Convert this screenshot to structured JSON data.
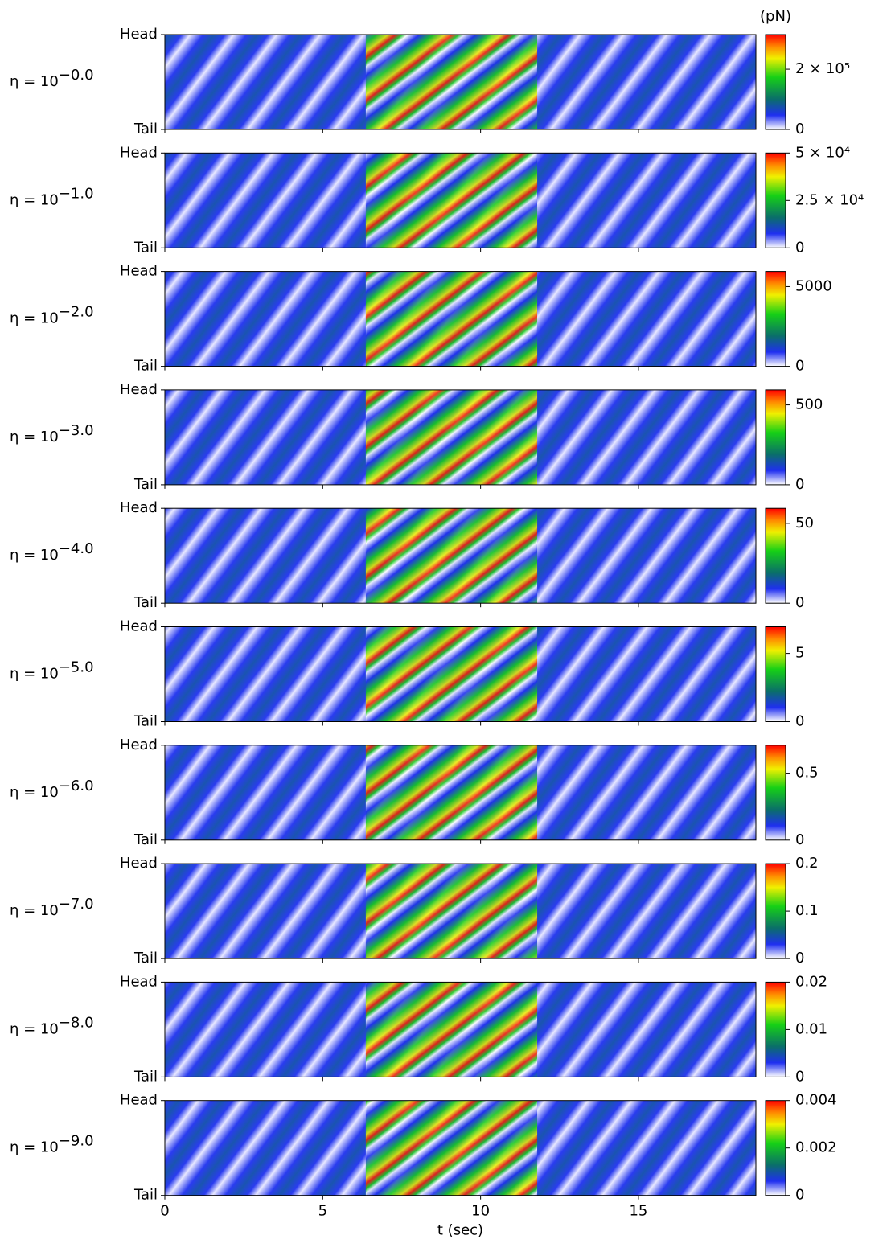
{
  "chart_data": [
    {
      "type": "heatmap",
      "ylabel": {
        "base": "η = 10",
        "exponent": "−0.0"
      },
      "yticks": [
        "Head",
        "Tail"
      ],
      "xlim": [
        0,
        18.72
      ],
      "xticks": [
        0,
        5,
        10,
        15
      ],
      "colorbar_label": "(pN)",
      "clim": [
        0,
        315000
      ],
      "cticks": [
        0,
        {
          "value": 200000,
          "label": "2 × 10⁵"
        }
      ]
    },
    {
      "type": "heatmap",
      "ylabel": {
        "base": "η = 10",
        "exponent": "−1.0"
      },
      "yticks": [
        "Head",
        "Tail"
      ],
      "xlim": [
        0,
        18.72
      ],
      "xticks": [
        0,
        5,
        10,
        15
      ],
      "clim": [
        0,
        50000
      ],
      "cticks": [
        0,
        {
          "value": 25000,
          "label": "2.5 × 10⁴"
        },
        {
          "value": 50000,
          "label": "5 × 10⁴"
        }
      ]
    },
    {
      "type": "heatmap",
      "ylabel": {
        "base": "η = 10",
        "exponent": "−2.0"
      },
      "yticks": [
        "Head",
        "Tail"
      ],
      "xlim": [
        0,
        18.72
      ],
      "xticks": [
        0,
        5,
        10,
        15
      ],
      "clim": [
        0,
        5950
      ],
      "cticks": [
        0,
        5000
      ]
    },
    {
      "type": "heatmap",
      "ylabel": {
        "base": "η = 10",
        "exponent": "−3.0"
      },
      "yticks": [
        "Head",
        "Tail"
      ],
      "xlim": [
        0,
        18.72
      ],
      "xticks": [
        0,
        5,
        10,
        15
      ],
      "clim": [
        0,
        594
      ],
      "cticks": [
        0,
        500
      ]
    },
    {
      "type": "heatmap",
      "ylabel": {
        "base": "η = 10",
        "exponent": "−4.0"
      },
      "yticks": [
        "Head",
        "Tail"
      ],
      "xlim": [
        0,
        18.72
      ],
      "xticks": [
        0,
        5,
        10,
        15
      ],
      "clim": [
        0,
        59.4
      ],
      "cticks": [
        0,
        50
      ]
    },
    {
      "type": "heatmap",
      "ylabel": {
        "base": "η = 10",
        "exponent": "−5.0"
      },
      "yticks": [
        "Head",
        "Tail"
      ],
      "xlim": [
        0,
        18.72
      ],
      "xticks": [
        0,
        5,
        10,
        15
      ],
      "clim": [
        0,
        6.95
      ],
      "cticks": [
        0,
        5
      ]
    },
    {
      "type": "heatmap",
      "ylabel": {
        "base": "η = 10",
        "exponent": "−6.0"
      },
      "yticks": [
        "Head",
        "Tail"
      ],
      "xlim": [
        0,
        18.72
      ],
      "xticks": [
        0,
        5,
        10,
        15
      ],
      "clim": [
        0,
        0.709
      ],
      "cticks": [
        0,
        0.5
      ]
    },
    {
      "type": "heatmap",
      "ylabel": {
        "base": "η = 10",
        "exponent": "−7.0"
      },
      "yticks": [
        "Head",
        "Tail"
      ],
      "xlim": [
        0,
        18.72
      ],
      "xticks": [
        0,
        5,
        10,
        15
      ],
      "clim": [
        0,
        0.2
      ],
      "cticks": [
        0,
        0.1,
        0.2
      ]
    },
    {
      "type": "heatmap",
      "ylabel": {
        "base": "η = 10",
        "exponent": "−8.0"
      },
      "yticks": [
        "Head",
        "Tail"
      ],
      "xlim": [
        0,
        18.72
      ],
      "xticks": [
        0,
        5,
        10,
        15
      ],
      "clim": [
        0,
        0.02
      ],
      "cticks": [
        0,
        0.01,
        0.02
      ]
    },
    {
      "type": "heatmap",
      "ylabel": {
        "base": "η = 10",
        "exponent": "−9.0"
      },
      "yticks": [
        "Head",
        "Tail"
      ],
      "xlim": [
        0,
        18.72
      ],
      "xticks": [
        0,
        5,
        10,
        15
      ],
      "xlabel": "t (sec)",
      "clim": [
        0,
        0.004
      ],
      "cticks": [
        0,
        0.002,
        0.004
      ]
    }
  ]
}
